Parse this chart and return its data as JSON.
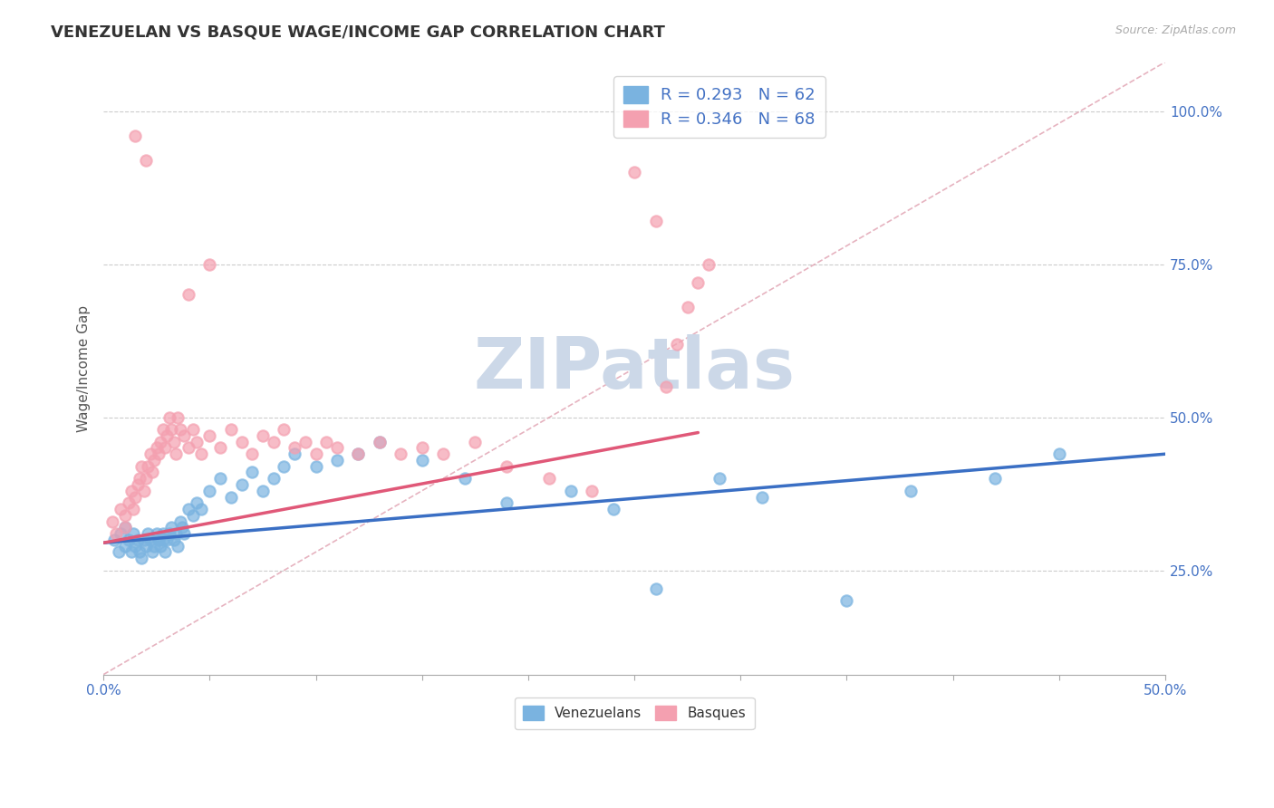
{
  "title": "VENEZUELAN VS BASQUE WAGE/INCOME GAP CORRELATION CHART",
  "source_text": "Source: ZipAtlas.com",
  "ylabel": "Wage/Income Gap",
  "xlim": [
    0.0,
    0.5
  ],
  "ylim": [
    0.08,
    1.08
  ],
  "xticks": [
    0.0,
    0.05,
    0.1,
    0.15,
    0.2,
    0.25,
    0.3,
    0.35,
    0.4,
    0.45,
    0.5
  ],
  "xticklabels": [
    "0.0%",
    "",
    "",
    "",
    "",
    "",
    "",
    "",
    "",
    "",
    "50.0%"
  ],
  "yticks_right": [
    0.25,
    0.5,
    0.75,
    1.0
  ],
  "yticklabels_right": [
    "25.0%",
    "50.0%",
    "75.0%",
    "100.0%"
  ],
  "venezuelan_color": "#7ab3e0",
  "basque_color": "#f4a0b0",
  "venezuelan_R": 0.293,
  "venezuelan_N": 62,
  "basque_R": 0.346,
  "basque_N": 68,
  "background_color": "#ffffff",
  "grid_color": "#cccccc",
  "watermark_text": "ZIPatlas",
  "watermark_color": "#ccd8e8",
  "title_fontsize": 13,
  "axis_label_fontsize": 11,
  "tick_fontsize": 11,
  "legend_fontsize": 13,
  "venezuelan_scatter_x": [
    0.005,
    0.007,
    0.008,
    0.01,
    0.01,
    0.012,
    0.013,
    0.014,
    0.015,
    0.016,
    0.017,
    0.018,
    0.019,
    0.02,
    0.021,
    0.022,
    0.023,
    0.024,
    0.025,
    0.026,
    0.027,
    0.028,
    0.028,
    0.029,
    0.03,
    0.031,
    0.032,
    0.033,
    0.034,
    0.035,
    0.036,
    0.037,
    0.038,
    0.04,
    0.042,
    0.044,
    0.046,
    0.05,
    0.055,
    0.06,
    0.065,
    0.07,
    0.075,
    0.08,
    0.085,
    0.09,
    0.1,
    0.11,
    0.12,
    0.13,
    0.15,
    0.17,
    0.19,
    0.22,
    0.24,
    0.26,
    0.29,
    0.31,
    0.35,
    0.38,
    0.42,
    0.45
  ],
  "venezuelan_scatter_y": [
    0.3,
    0.28,
    0.31,
    0.29,
    0.32,
    0.3,
    0.28,
    0.31,
    0.29,
    0.3,
    0.28,
    0.27,
    0.3,
    0.29,
    0.31,
    0.3,
    0.28,
    0.29,
    0.31,
    0.3,
    0.29,
    0.31,
    0.3,
    0.28,
    0.3,
    0.31,
    0.32,
    0.3,
    0.31,
    0.29,
    0.33,
    0.32,
    0.31,
    0.35,
    0.34,
    0.36,
    0.35,
    0.38,
    0.4,
    0.37,
    0.39,
    0.41,
    0.38,
    0.4,
    0.42,
    0.44,
    0.42,
    0.43,
    0.44,
    0.46,
    0.43,
    0.4,
    0.36,
    0.38,
    0.35,
    0.22,
    0.4,
    0.37,
    0.2,
    0.38,
    0.4,
    0.44
  ],
  "basque_scatter_x": [
    0.004,
    0.006,
    0.008,
    0.01,
    0.01,
    0.012,
    0.013,
    0.014,
    0.015,
    0.016,
    0.017,
    0.018,
    0.019,
    0.02,
    0.021,
    0.022,
    0.023,
    0.024,
    0.025,
    0.026,
    0.027,
    0.028,
    0.029,
    0.03,
    0.031,
    0.032,
    0.033,
    0.034,
    0.035,
    0.036,
    0.038,
    0.04,
    0.042,
    0.044,
    0.046,
    0.05,
    0.055,
    0.06,
    0.065,
    0.07,
    0.075,
    0.08,
    0.085,
    0.09,
    0.095,
    0.1,
    0.105,
    0.11,
    0.12,
    0.13,
    0.14,
    0.15,
    0.16,
    0.175,
    0.19,
    0.21,
    0.23,
    0.25,
    0.26,
    0.265,
    0.27,
    0.275,
    0.28,
    0.285,
    0.05,
    0.04,
    0.02,
    0.015
  ],
  "basque_scatter_y": [
    0.33,
    0.31,
    0.35,
    0.32,
    0.34,
    0.36,
    0.38,
    0.35,
    0.37,
    0.39,
    0.4,
    0.42,
    0.38,
    0.4,
    0.42,
    0.44,
    0.41,
    0.43,
    0.45,
    0.44,
    0.46,
    0.48,
    0.45,
    0.47,
    0.5,
    0.48,
    0.46,
    0.44,
    0.5,
    0.48,
    0.47,
    0.45,
    0.48,
    0.46,
    0.44,
    0.47,
    0.45,
    0.48,
    0.46,
    0.44,
    0.47,
    0.46,
    0.48,
    0.45,
    0.46,
    0.44,
    0.46,
    0.45,
    0.44,
    0.46,
    0.44,
    0.45,
    0.44,
    0.46,
    0.42,
    0.4,
    0.38,
    0.9,
    0.82,
    0.55,
    0.62,
    0.68,
    0.72,
    0.75,
    0.75,
    0.7,
    0.92,
    0.96
  ],
  "trend_ven_x0": 0.0,
  "trend_ven_y0": 0.295,
  "trend_ven_x1": 0.5,
  "trend_ven_y1": 0.44,
  "trend_bas_x0": 0.0,
  "trend_bas_y0": 0.295,
  "trend_bas_x1": 0.28,
  "trend_bas_y1": 0.475,
  "ref_line_x0": 0.0,
  "ref_line_y0": 0.08,
  "ref_line_x1": 0.5,
  "ref_line_y1": 1.08
}
